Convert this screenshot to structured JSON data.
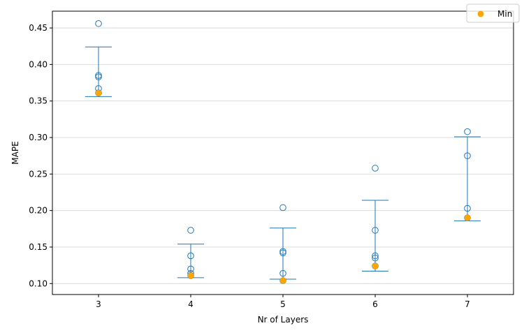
{
  "chart_data": {
    "type": "scatter",
    "title": "",
    "xlabel": "Nr of Layers",
    "ylabel": "MAPE",
    "xlim": [
      2.5,
      7.5
    ],
    "ylim": [
      0.085,
      0.473
    ],
    "xticks": [
      3,
      4,
      5,
      6,
      7
    ],
    "yticks": [
      0.1,
      0.15,
      0.2,
      0.25,
      0.3,
      0.35,
      0.4,
      0.45
    ],
    "ytick_labels": [
      "0.10",
      "0.15",
      "0.20",
      "0.25",
      "0.30",
      "0.35",
      "0.40",
      "0.45"
    ],
    "grid": "horizontal",
    "legend": {
      "placement": "top-right",
      "entries": [
        {
          "name": "Min",
          "color": "#FFA500"
        }
      ]
    },
    "colors": {
      "points": "#1f77b4",
      "error_bars": "#1f77b4",
      "min": "#FFA500",
      "grid": "#d3d3d3"
    },
    "groups": [
      {
        "x": 3,
        "points": [
          0.456,
          0.385,
          0.383,
          0.367,
          0.361
        ],
        "err_low": 0.356,
        "err_high": 0.424,
        "min": 0.361
      },
      {
        "x": 4,
        "points": [
          0.173,
          0.138,
          0.12,
          0.114,
          0.111
        ],
        "err_low": 0.108,
        "err_high": 0.154,
        "min": 0.111
      },
      {
        "x": 5,
        "points": [
          0.204,
          0.144,
          0.142,
          0.114,
          0.104
        ],
        "err_low": 0.106,
        "err_high": 0.176,
        "min": 0.104
      },
      {
        "x": 6,
        "points": [
          0.258,
          0.173,
          0.138,
          0.135,
          0.124
        ],
        "err_low": 0.117,
        "err_high": 0.214,
        "min": 0.124
      },
      {
        "x": 7,
        "points": [
          0.308,
          0.275,
          0.203,
          0.19
        ],
        "err_low": 0.186,
        "err_high": 0.301,
        "min": 0.19
      }
    ]
  }
}
